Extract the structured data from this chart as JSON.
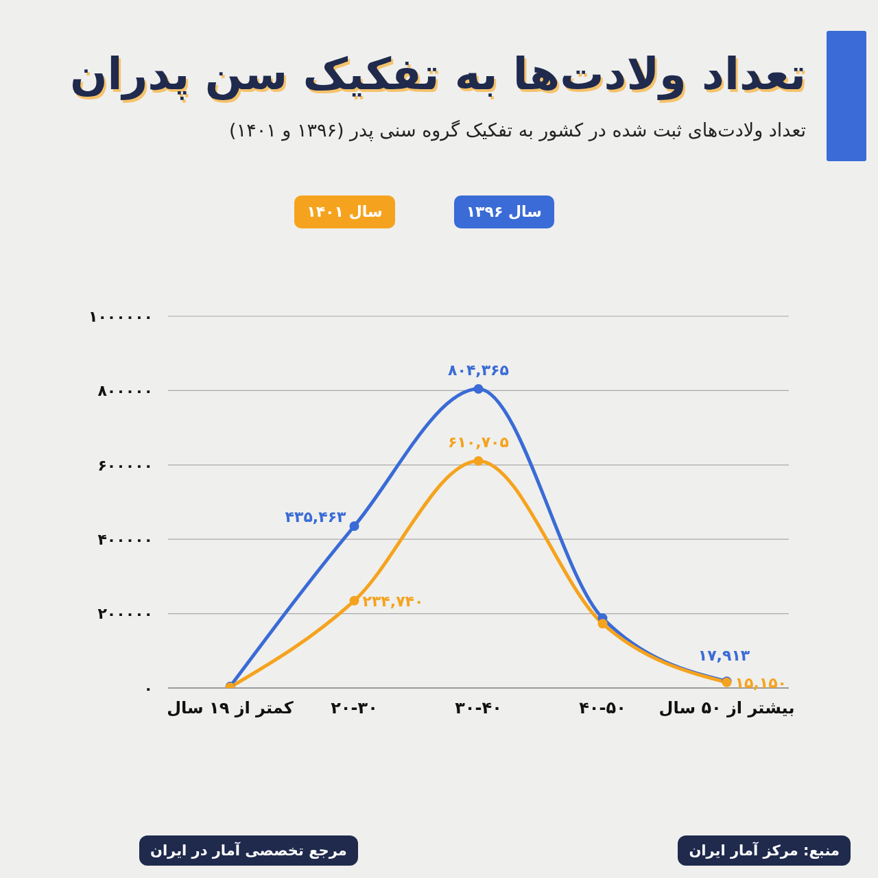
{
  "chart_data": {
    "type": "line",
    "title": "تعداد ولادت‌ها به تفکیک سن پدران",
    "subtitle": "تعداد ولادت‌های ثبت شده در کشور به تفکیک گروه سنی پدر (۱۳۹۶ و ۱۴۰۱)",
    "categories": [
      "کمتر از ۱۹ سال",
      "۲۰-۳۰",
      "۳۰-۴۰",
      "۴۰-۵۰",
      "بیشتر از ۵۰ سال"
    ],
    "series": [
      {
        "name": "سال ۱۳۹۶",
        "color": "#3a6bd6",
        "values": [
          4000,
          435463,
          804365,
          188000,
          17913
        ],
        "value_labels": [
          null,
          "۴۳۵,۴۶۳",
          "۸۰۴,۳۶۵",
          null,
          "۱۷,۹۱۳"
        ]
      },
      {
        "name": "سال ۱۴۰۱",
        "color": "#f5a31e",
        "values": [
          2000,
          234740,
          610705,
          173000,
          15150
        ],
        "value_labels": [
          null,
          "۲۳۴,۷۴۰",
          "۶۱۰,۷۰۵",
          null,
          "۱۵,۱۵۰"
        ]
      }
    ],
    "ylim": [
      0,
      1000000
    ],
    "yticks": [
      {
        "value": 0,
        "label": "۰"
      },
      {
        "value": 200000,
        "label": "۲۰۰۰۰۰"
      },
      {
        "value": 400000,
        "label": "۴۰۰۰۰۰"
      },
      {
        "value": 600000,
        "label": "۶۰۰۰۰۰"
      },
      {
        "value": 800000,
        "label": "۸۰۰۰۰۰"
      },
      {
        "value": 1000000,
        "label": "۱۰۰۰۰۰۰"
      }
    ],
    "grid": "y",
    "legend": "top",
    "marker": "circle",
    "annotations": [
      "منبع: مرکز آمار ایران",
      "مرجع تخصصی آمار در ایران"
    ]
  }
}
